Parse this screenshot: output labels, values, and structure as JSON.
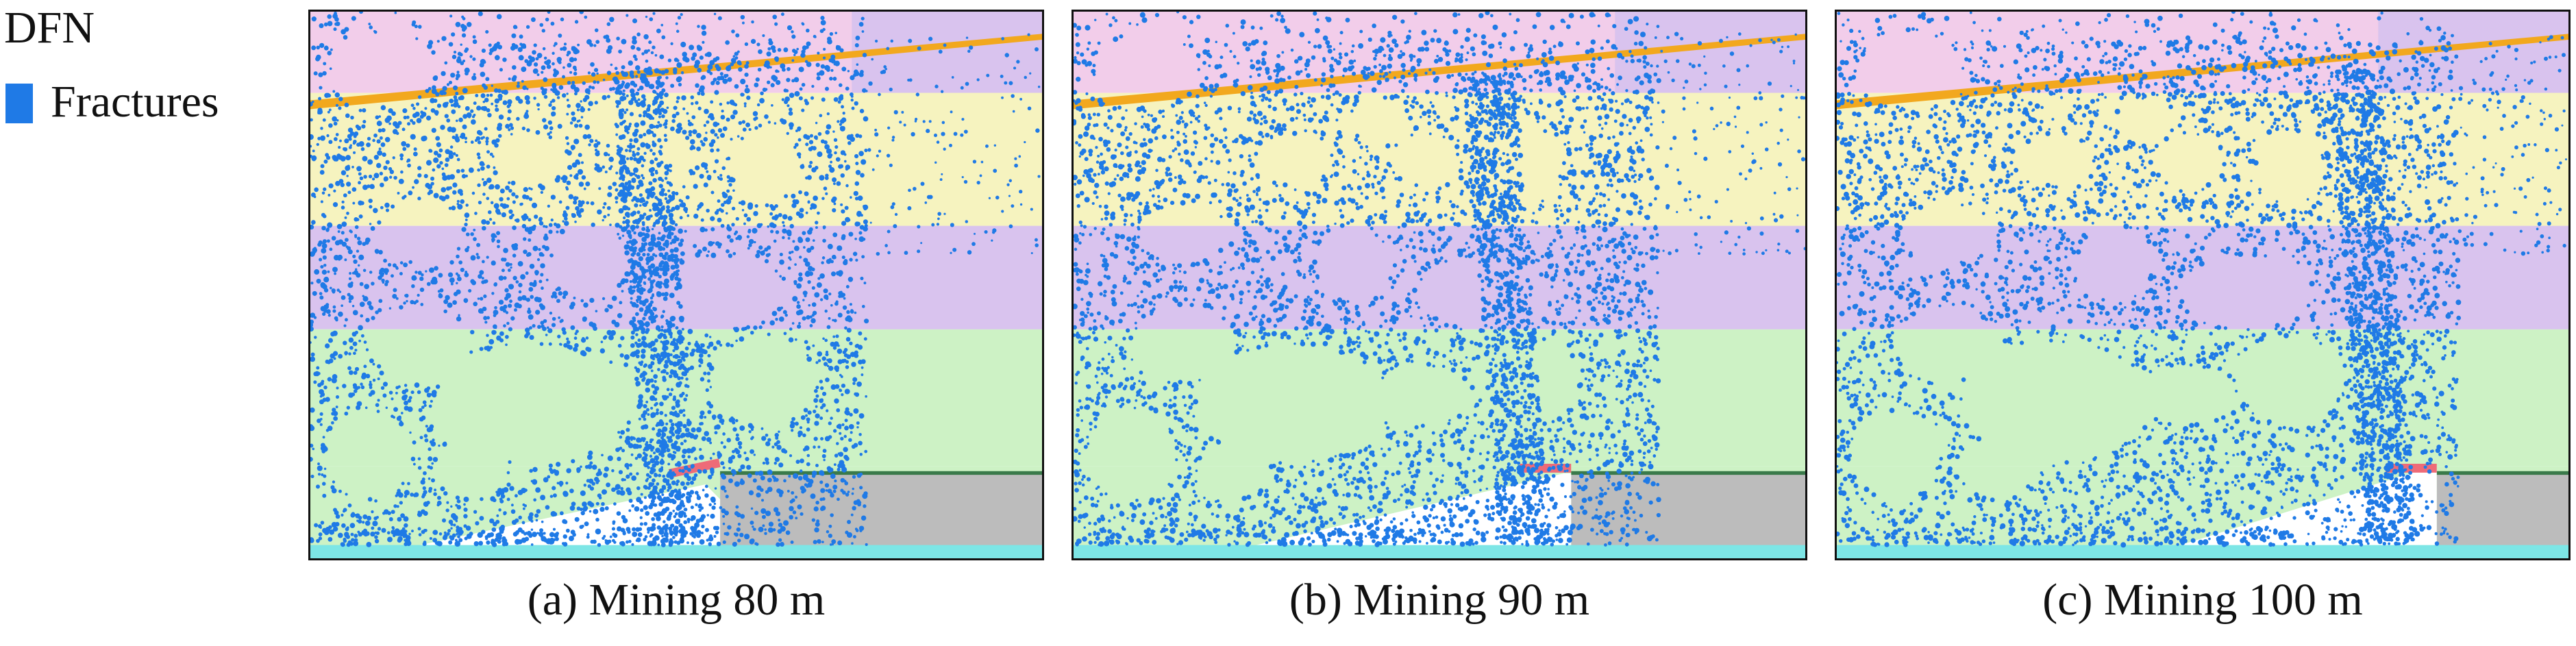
{
  "legend": {
    "title": "DFN",
    "label": "Fractures",
    "swatch_color": "#1f7ae6"
  },
  "colors": {
    "pink": "#f2cdea",
    "yellow": "#f6f3bf",
    "lavender": "#d9c3ee",
    "green": "#cdf2c5",
    "cyan": "#7de6e6",
    "gray": "#bcbcbc",
    "orange": "#f2a81e",
    "red": "#ee6b78",
    "fracture": "#1f7ae6",
    "void": "#ffffff"
  },
  "panels": [
    {
      "caption": "(a) Mining 80 m",
      "mining_m": 80
    },
    {
      "caption": "(b) Mining 90 m",
      "mining_m": 90
    },
    {
      "caption": "(c) Mining 100 m",
      "mining_m": 100
    }
  ]
}
